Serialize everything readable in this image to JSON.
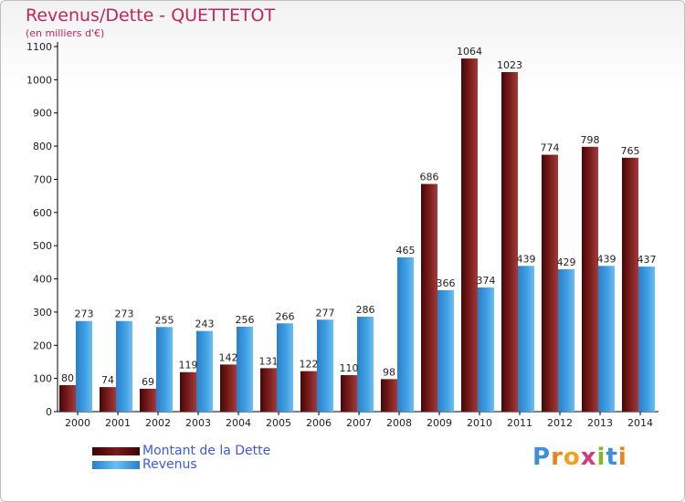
{
  "title": "Revenus/Dette - QUETTETOT",
  "subtitle": "(en milliers d'€)",
  "logo": "Proxiti",
  "colors": {
    "dette": "#7a1a1a",
    "revenus": "#3d9be0",
    "title": "#c0265d",
    "legend_text": "#3c5bd6"
  },
  "chart_data": {
    "type": "bar",
    "categories": [
      "2000",
      "2001",
      "2002",
      "2003",
      "2004",
      "2005",
      "2006",
      "2007",
      "2008",
      "2009",
      "2010",
      "2011",
      "2012",
      "2013",
      "2014"
    ],
    "series": [
      {
        "name": "Montant de la Dette",
        "values": [
          80,
          74,
          69,
          119,
          142,
          131,
          122,
          110,
          98,
          686,
          1064,
          1023,
          774,
          798,
          765
        ]
      },
      {
        "name": "Revenus",
        "values": [
          273,
          273,
          255,
          243,
          256,
          266,
          277,
          286,
          465,
          366,
          374,
          439,
          429,
          439,
          437
        ]
      }
    ],
    "ylim": [
      0,
      1100
    ],
    "yticks": [
      0,
      100,
      200,
      300,
      400,
      500,
      600,
      700,
      800,
      900,
      1000,
      1100
    ],
    "grid": false,
    "legend_position": "bottom-left"
  }
}
